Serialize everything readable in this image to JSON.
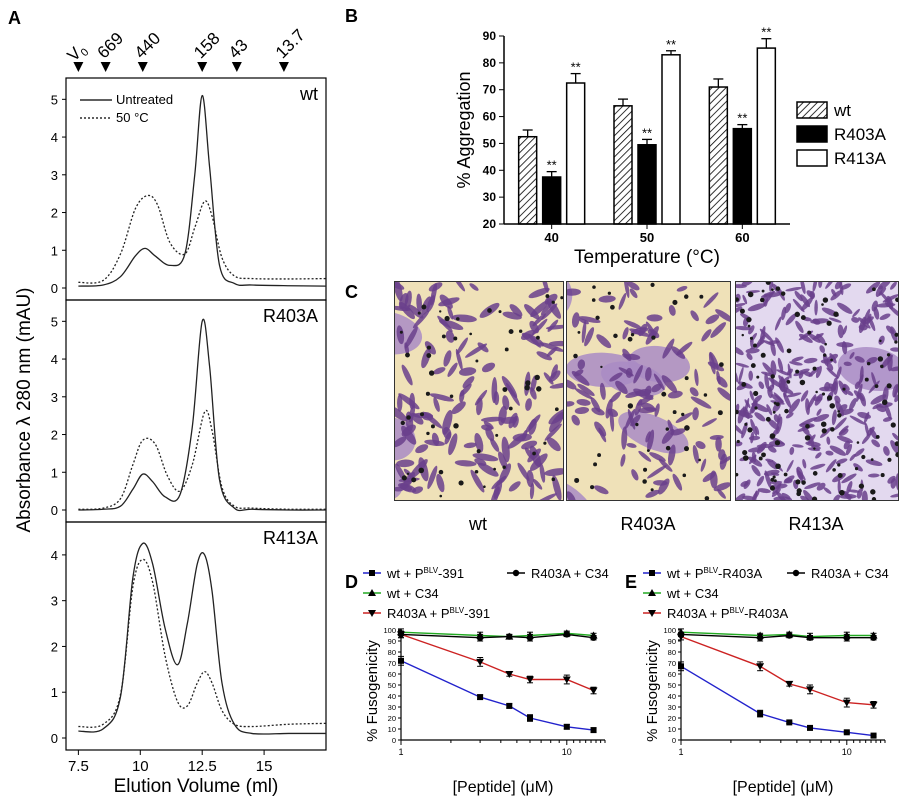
{
  "panel_letters": [
    "A",
    "B",
    "C",
    "D",
    "E"
  ],
  "chart_data": [
    {
      "id": "A",
      "type": "line",
      "xlabel": "Elution Volume (ml)",
      "ylabel": "Absorbance λ 280 nm (mAU)",
      "x_ticks": [
        "7.5",
        "10",
        "12.5",
        "15"
      ],
      "xlim": [
        7,
        17.5
      ],
      "top_markers": [
        {
          "label": "V",
          "sub": "0",
          "x": 7.5
        },
        {
          "label": "669",
          "x": 8.6
        },
        {
          "label": "440",
          "x": 10.1
        },
        {
          "label": "158",
          "x": 12.5
        },
        {
          "label": "43",
          "x": 13.9
        },
        {
          "label": "13.7",
          "x": 15.8
        }
      ],
      "legend": {
        "solid": "Untreated",
        "dotted": "50 °C"
      },
      "subplots": [
        {
          "title": "wt",
          "ylim": [
            0,
            5.3
          ],
          "yticks": [
            "0",
            "1",
            "2",
            "3",
            "4",
            "5"
          ],
          "series": [
            {
              "name": "Untreated",
              "style": "solid",
              "x": [
                7.5,
                8.5,
                9.2,
                9.8,
                10.2,
                10.6,
                11.2,
                11.8,
                12.2,
                12.5,
                12.8,
                13.2,
                13.8,
                14.5,
                16,
                17.5
              ],
              "y": [
                0.05,
                0.08,
                0.3,
                0.85,
                1.05,
                0.85,
                0.6,
                0.9,
                3.0,
                5.1,
                3.2,
                0.6,
                0.12,
                0.08,
                0.06,
                0.05
              ]
            },
            {
              "name": "50 °C",
              "style": "dotted",
              "x": [
                7.5,
                8.5,
                9.2,
                9.8,
                10.3,
                10.7,
                11.2,
                11.8,
                12.2,
                12.6,
                12.9,
                13.3,
                13.8,
                14.5,
                16,
                17.5
              ],
              "y": [
                0.15,
                0.2,
                0.9,
                2.1,
                2.45,
                2.2,
                1.2,
                0.9,
                1.6,
                2.3,
                1.9,
                0.8,
                0.32,
                0.25,
                0.24,
                0.25
              ]
            }
          ]
        },
        {
          "title": "R403A",
          "ylim": [
            0,
            5.3
          ],
          "yticks": [
            "0",
            "1",
            "2",
            "3",
            "4",
            "5"
          ],
          "series": [
            {
              "name": "Untreated",
              "style": "solid",
              "x": [
                7.5,
                8.5,
                9.2,
                9.7,
                10.1,
                10.5,
                11.0,
                11.6,
                12.1,
                12.5,
                12.8,
                13.2,
                13.8,
                14.5,
                16,
                17.5
              ],
              "y": [
                0.0,
                0.02,
                0.1,
                0.55,
                0.95,
                0.75,
                0.35,
                0.4,
                2.2,
                5.0,
                3.8,
                0.8,
                0.05,
                0.02,
                0.0,
                0.0
              ]
            },
            {
              "name": "50 °C",
              "style": "dotted",
              "x": [
                7.5,
                8.5,
                9.2,
                9.7,
                10.1,
                10.6,
                11.1,
                11.6,
                12.1,
                12.6,
                12.9,
                13.3,
                13.8,
                14.5,
                16,
                17.5
              ],
              "y": [
                0.02,
                0.05,
                0.3,
                1.2,
                1.85,
                1.75,
                0.9,
                0.5,
                1.2,
                2.6,
                2.1,
                0.6,
                0.1,
                0.05,
                0.02,
                0.02
              ]
            }
          ]
        },
        {
          "title": "R413A",
          "ylim": [
            0,
            4.5
          ],
          "yticks": [
            "0",
            "1",
            "2",
            "3",
            "4"
          ],
          "series": [
            {
              "name": "Untreated",
              "style": "solid",
              "x": [
                7.5,
                8.5,
                9.2,
                9.7,
                10.1,
                10.5,
                11.0,
                11.5,
                11.9,
                12.3,
                12.6,
                12.9,
                13.3,
                13.8,
                14.5,
                16,
                17.5
              ],
              "y": [
                0.15,
                0.2,
                0.9,
                3.5,
                4.25,
                3.8,
                2.4,
                1.6,
                2.5,
                3.8,
                4.0,
                3.2,
                1.2,
                0.3,
                0.1,
                0.1,
                0.1
              ]
            },
            {
              "name": "50 °C",
              "style": "dotted",
              "x": [
                7.5,
                8.5,
                9.2,
                9.7,
                10.1,
                10.5,
                11.0,
                11.5,
                11.9,
                12.3,
                12.6,
                12.9,
                13.3,
                13.8,
                14.5,
                16,
                17.5
              ],
              "y": [
                0.25,
                0.3,
                0.95,
                3.3,
                3.9,
                3.4,
                1.8,
                0.8,
                0.7,
                1.2,
                1.45,
                1.2,
                0.6,
                0.3,
                0.25,
                0.3,
                0.32
              ]
            }
          ]
        }
      ]
    },
    {
      "id": "B",
      "type": "bar",
      "xlabel": "Temperature (°C)",
      "ylabel": "% Aggregation",
      "ylim": [
        20,
        90
      ],
      "yticks": [
        "20",
        "30",
        "40",
        "50",
        "60",
        "70",
        "80",
        "90"
      ],
      "categories": [
        "40",
        "50",
        "60"
      ],
      "series": [
        {
          "name": "wt",
          "fill": "hatch",
          "values": [
            52.5,
            64,
            71
          ],
          "err": [
            2.5,
            2.5,
            3
          ],
          "sig": [
            "",
            "",
            ""
          ]
        },
        {
          "name": "R403A",
          "fill": "black",
          "values": [
            37.5,
            49.5,
            55.5
          ],
          "err": [
            2,
            2,
            1.5
          ],
          "sig": [
            "**",
            "**",
            "**"
          ]
        },
        {
          "name": "R413A",
          "fill": "white",
          "values": [
            72.5,
            83,
            85.5
          ],
          "err": [
            3.5,
            1.5,
            3.5
          ],
          "sig": [
            "**",
            "**",
            "**"
          ]
        }
      ]
    },
    {
      "id": "D",
      "type": "line",
      "xscale": "log",
      "xlabel": "[Peptide] (μM)",
      "ylabel": "% Fusogenicity",
      "ylim": [
        0,
        100
      ],
      "yticks": [
        "0",
        "10",
        "20",
        "30",
        "40",
        "50",
        "60",
        "70",
        "80",
        "90",
        "100"
      ],
      "xticks": [
        "1",
        "10"
      ],
      "series": [
        {
          "name": "wt + P",
          "sup": "BLV",
          "suffix": "-391",
          "color": "#2222cc",
          "marker": "square",
          "x": [
            1,
            3,
            4.5,
            6,
            10,
            14.5
          ],
          "y": [
            72,
            39,
            31,
            20,
            12,
            9
          ],
          "err": [
            4,
            2,
            2,
            3,
            2,
            2
          ]
        },
        {
          "name": "wt + C34",
          "color": "#22aa22",
          "marker": "triangle-up",
          "x": [
            1,
            3,
            4.5,
            6,
            10,
            14.5
          ],
          "y": [
            98,
            95,
            94,
            95,
            97,
            95
          ],
          "err": [
            3,
            3,
            2,
            3,
            2,
            2
          ]
        },
        {
          "name": "R403A + P",
          "sup": "BLV",
          "suffix": "-391",
          "color": "#cc2222",
          "marker": "triangle-down",
          "x": [
            1,
            3,
            4.5,
            6,
            10,
            14.5
          ],
          "y": [
            96,
            71,
            60,
            55,
            55,
            45
          ],
          "err": [
            3,
            4,
            2,
            3,
            4,
            3
          ]
        },
        {
          "name": "R403A + C34",
          "color": "#000000",
          "marker": "circle",
          "x": [
            1,
            3,
            4.5,
            6,
            10,
            14.5
          ],
          "y": [
            96,
            93,
            94,
            93,
            96,
            93
          ],
          "err": [
            3,
            3,
            2,
            3,
            2,
            2
          ]
        }
      ]
    },
    {
      "id": "E",
      "type": "line",
      "xscale": "log",
      "xlabel": "[Peptide] (μM)",
      "ylabel": "% Fusogenicity",
      "ylim": [
        0,
        100
      ],
      "yticks": [
        "0",
        "10",
        "20",
        "30",
        "40",
        "50",
        "60",
        "70",
        "80",
        "90",
        "100"
      ],
      "xticks": [
        "1",
        "10"
      ],
      "series": [
        {
          "name": "wt + P",
          "sup": "BLV",
          "suffix": "-R403A",
          "color": "#2222cc",
          "marker": "square",
          "x": [
            1,
            3,
            4.5,
            6,
            10,
            14.5
          ],
          "y": [
            67,
            24,
            16,
            11,
            7,
            4
          ],
          "err": [
            4,
            3,
            1,
            1,
            1,
            1
          ]
        },
        {
          "name": "wt + C34",
          "color": "#22aa22",
          "marker": "triangle-up",
          "x": [
            1,
            3,
            4.5,
            6,
            10,
            14.5
          ],
          "y": [
            98,
            95,
            96,
            94,
            95,
            95
          ],
          "err": [
            3,
            2,
            2,
            3,
            3,
            2
          ]
        },
        {
          "name": "R403A + P",
          "sup": "BLV",
          "suffix": "-R403A",
          "color": "#cc2222",
          "marker": "triangle-down",
          "x": [
            1,
            3,
            4.5,
            6,
            10,
            14.5
          ],
          "y": [
            94,
            67,
            51,
            46,
            34,
            32
          ],
          "err": [
            3,
            4,
            2,
            4,
            4,
            3
          ]
        },
        {
          "name": "R403A + C34",
          "color": "#000000",
          "marker": "circle",
          "x": [
            1,
            3,
            4.5,
            6,
            10,
            14.5
          ],
          "y": [
            96,
            93,
            95,
            93,
            93,
            93
          ],
          "err": [
            2,
            3,
            2,
            2,
            3,
            2
          ]
        }
      ]
    }
  ],
  "micrographs": {
    "labels": [
      "wt",
      "R403A",
      "R413A"
    ],
    "colors": {
      "cell": "#6a3f8c",
      "cell_light": "#a98bc4",
      "background": "#efe1b8",
      "background_alt": "#e3d9ef",
      "dot": "#1a1a1a"
    }
  }
}
